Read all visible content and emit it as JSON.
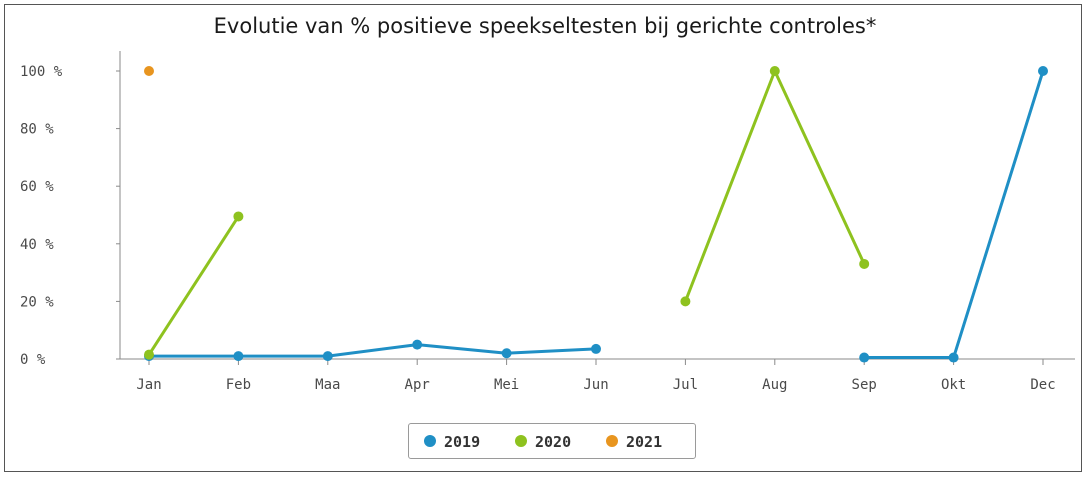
{
  "chart_data": {
    "type": "line",
    "title": "Evolutie van % positieve speekseltesten bij gerichte controles*",
    "categories": [
      "Jan",
      "Feb",
      "Maa",
      "Apr",
      "Mei",
      "Jun",
      "Jul",
      "Aug",
      "Sep",
      "Okt",
      "Dec"
    ],
    "y_tick_labels": [
      "0 %",
      "20 %",
      "40 %",
      "60 %",
      "80 %",
      "100 %"
    ],
    "ylim": [
      0,
      100
    ],
    "grid": false,
    "legend_position": "bottom",
    "series": [
      {
        "name": "2019",
        "color": "#1f8fc5",
        "values": [
          1,
          1,
          1,
          5,
          2,
          3.5,
          null,
          null,
          0.5,
          0.5,
          100
        ]
      },
      {
        "name": "2020",
        "color": "#8ec21f",
        "values": [
          1.5,
          49.5,
          null,
          null,
          null,
          null,
          20,
          100,
          33,
          null,
          null
        ]
      },
      {
        "name": "2021",
        "color": "#e8951f",
        "values": [
          100,
          null,
          null,
          null,
          null,
          null,
          null,
          null,
          null,
          null,
          null
        ]
      }
    ]
  }
}
